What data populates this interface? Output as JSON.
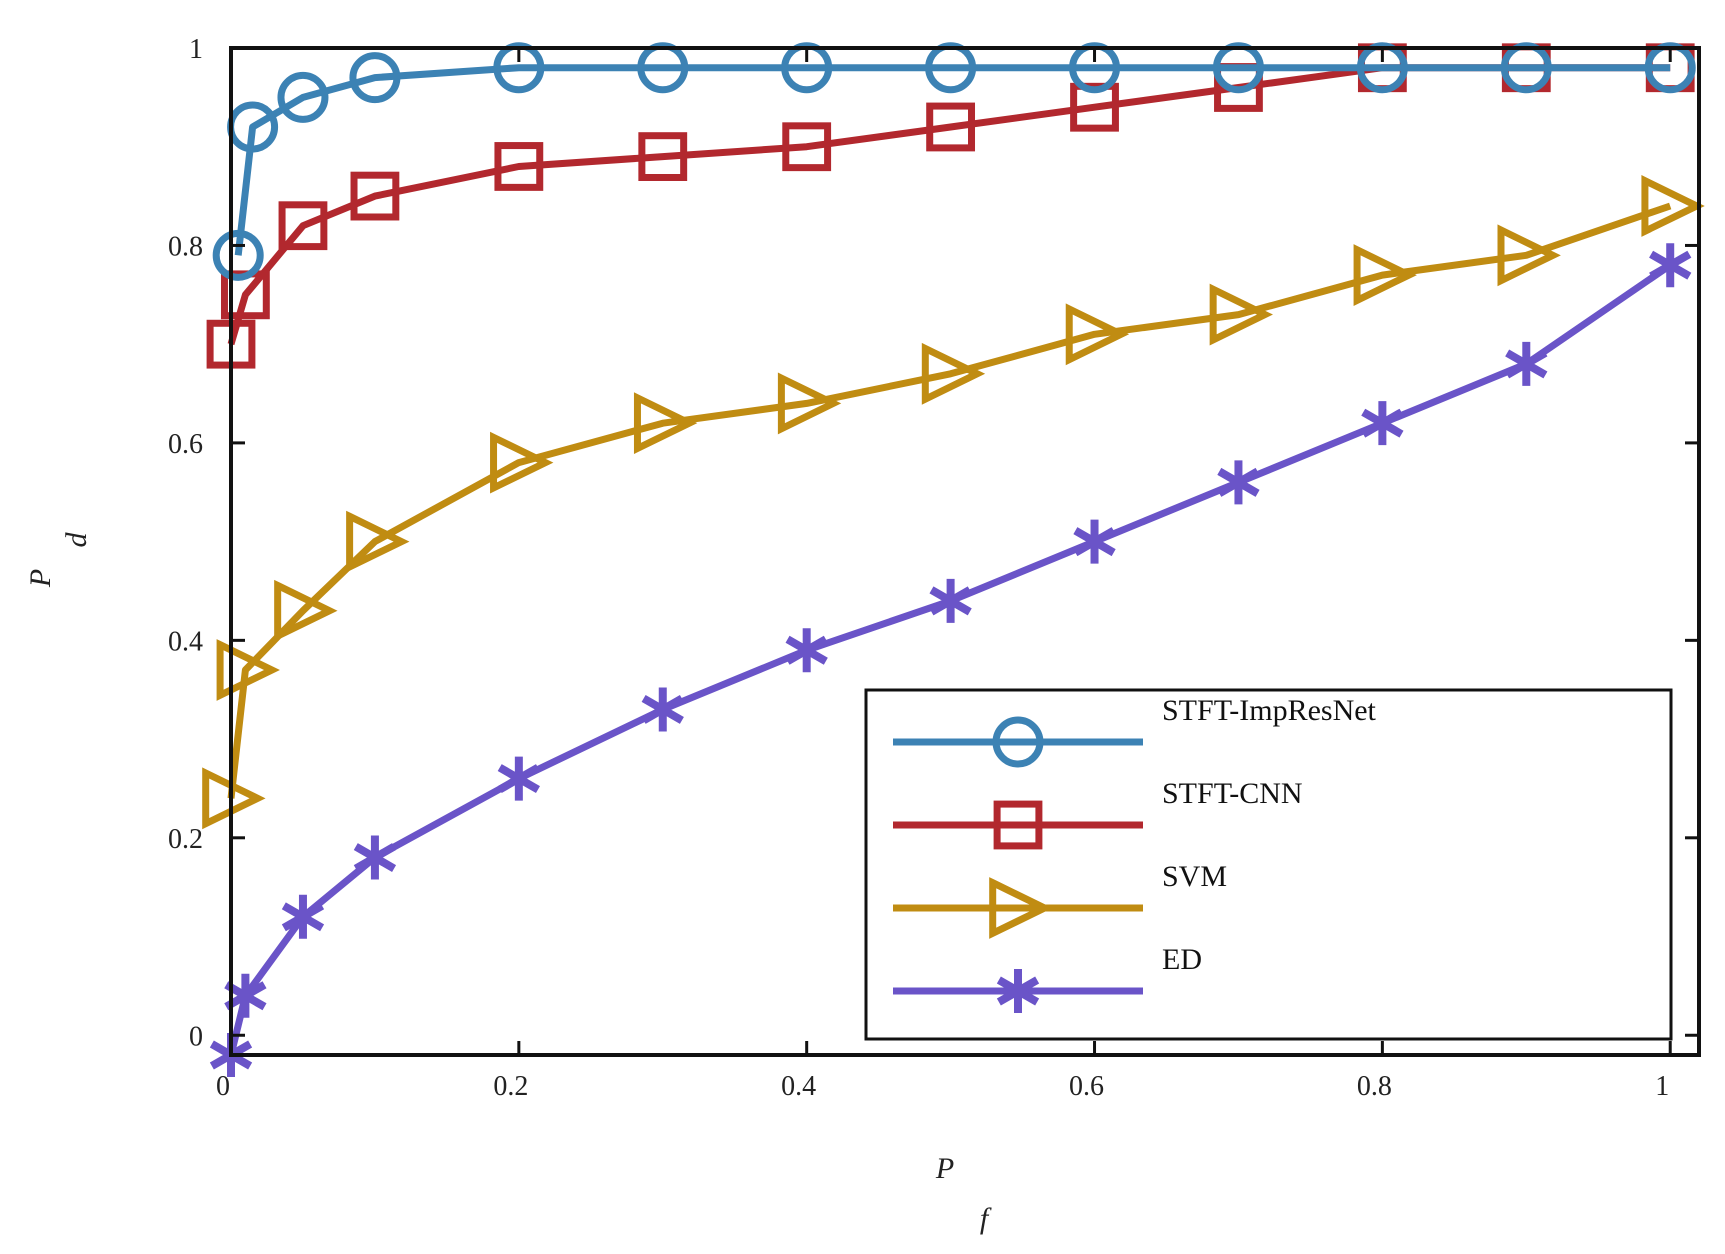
{
  "chart_data": {
    "type": "line",
    "xlabel": "P",
    "xlabel_sub": "f",
    "ylabel": "P",
    "ylabel_sub": "d",
    "xlim": [
      0,
      1.02
    ],
    "ylim": [
      -0.02,
      1
    ],
    "xticks": [
      0,
      0.2,
      0.4,
      0.6,
      0.8,
      1
    ],
    "xtick_labels": [
      "0",
      "0.2",
      "0.4",
      "0.6",
      "0.8",
      "1"
    ],
    "yticks": [
      0,
      0.2,
      0.4,
      0.6,
      0.8,
      1
    ],
    "ytick_labels": [
      "0",
      "0.2",
      "0.4",
      "0.6",
      "0.8",
      "1"
    ],
    "grid": false,
    "legend_position": "bottom-right",
    "series": [
      {
        "name": "STFT-ImpResNet",
        "color": "#3c82b4",
        "marker": "circle",
        "x": [
          0.005,
          0.015,
          0.05,
          0.1,
          0.2,
          0.3,
          0.4,
          0.5,
          0.6,
          0.7,
          0.8,
          0.9,
          1.0
        ],
        "y": [
          0.79,
          0.92,
          0.95,
          0.97,
          0.98,
          0.98,
          0.98,
          0.98,
          0.98,
          0.98,
          0.98,
          0.98,
          0.98
        ]
      },
      {
        "name": "STFT-CNN",
        "color": "#b2282e",
        "marker": "square",
        "x": [
          0.0,
          0.01,
          0.05,
          0.1,
          0.2,
          0.3,
          0.4,
          0.5,
          0.6,
          0.7,
          0.8,
          0.9,
          1.0
        ],
        "y": [
          0.7,
          0.75,
          0.82,
          0.85,
          0.88,
          0.89,
          0.9,
          0.92,
          0.94,
          0.96,
          0.98,
          0.98,
          0.98
        ]
      },
      {
        "name": "SVM",
        "color": "#c08c12",
        "marker": "triangle-right",
        "x": [
          0.0,
          0.01,
          0.05,
          0.1,
          0.2,
          0.3,
          0.4,
          0.5,
          0.6,
          0.7,
          0.8,
          0.9,
          1.0
        ],
        "y": [
          0.24,
          0.37,
          0.43,
          0.5,
          0.58,
          0.62,
          0.64,
          0.67,
          0.71,
          0.73,
          0.77,
          0.79,
          0.84
        ]
      },
      {
        "name": "ED",
        "color": "#6a54c8",
        "marker": "asterisk",
        "x": [
          0.0,
          0.01,
          0.05,
          0.1,
          0.2,
          0.3,
          0.4,
          0.5,
          0.6,
          0.7,
          0.8,
          0.9,
          1.0
        ],
        "y": [
          -0.02,
          0.04,
          0.12,
          0.18,
          0.26,
          0.33,
          0.39,
          0.44,
          0.5,
          0.56,
          0.62,
          0.68,
          0.78
        ]
      }
    ]
  }
}
